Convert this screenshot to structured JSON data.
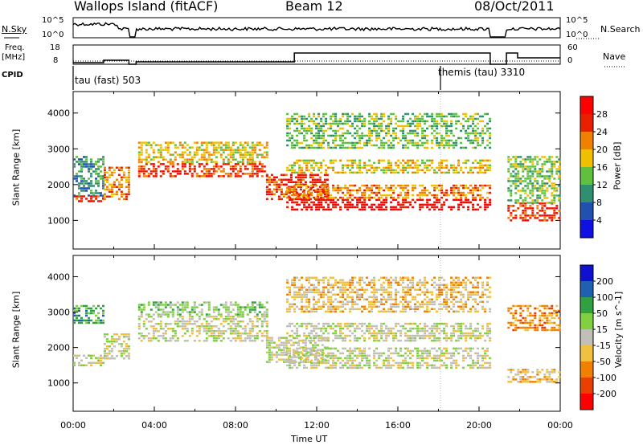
{
  "header": {
    "station": "Wallops Island (fitACF)",
    "beam": "Beam 12",
    "date": "08/Oct/2011"
  },
  "sky_panel": {
    "left_label": "N.Sky",
    "right_label": "N.Search",
    "left_ticks": [
      "10^5",
      "10^0"
    ],
    "right_ticks": [
      "10^5",
      "10^0"
    ]
  },
  "freq_panel": {
    "left_label_line1": "Freq.",
    "left_label_line2": "[MHz]",
    "left_ticks": [
      "18",
      "8"
    ],
    "right_label": "Nave",
    "right_ticks": [
      "60",
      "0"
    ]
  },
  "cpid": {
    "label": "CPID",
    "mode1": "tau (fast) 503",
    "mode2": "themis (tau) 3310"
  },
  "chart_data": [
    {
      "type": "heatmap",
      "name": "power",
      "ylabel": "Slant Range [km]",
      "yticks": [
        "1000",
        "2000",
        "3000",
        "4000"
      ],
      "ylim": [
        200,
        4600
      ],
      "xlim": [
        0,
        24
      ],
      "colorbar_label": "Power [dB]",
      "colorbar_ticks": [
        "4",
        "8",
        "12",
        "16",
        "20",
        "24",
        "28"
      ],
      "colors": [
        "#1010e0",
        "#2050b0",
        "#2f8f6e",
        "#5fc040",
        "#f0c000",
        "#f08000",
        "#e82000",
        "#ff0000"
      ],
      "bands": [
        {
          "t0": 0.0,
          "t1": 1.5,
          "r0": 1500,
          "r1": 1700,
          "level": 6
        },
        {
          "t0": 0.0,
          "t1": 1.5,
          "r0": 1700,
          "r1": 2800,
          "level": 2
        },
        {
          "t0": 1.5,
          "t1": 2.8,
          "r0": 1600,
          "r1": 2500,
          "level": 5
        },
        {
          "t0": 3.2,
          "t1": 9.5,
          "r0": 2200,
          "r1": 2600,
          "level": 6
        },
        {
          "t0": 3.2,
          "t1": 9.5,
          "r0": 2600,
          "r1": 3200,
          "level": 4
        },
        {
          "t0": 9.5,
          "t1": 12.5,
          "r0": 1600,
          "r1": 2300,
          "level": 6
        },
        {
          "t0": 10.5,
          "t1": 20.5,
          "r0": 1300,
          "r1": 1600,
          "level": 7
        },
        {
          "t0": 10.5,
          "t1": 20.5,
          "r0": 1600,
          "r1": 2000,
          "level": 5
        },
        {
          "t0": 10.5,
          "t1": 20.5,
          "r0": 2300,
          "r1": 2700,
          "level": 4
        },
        {
          "t0": 10.5,
          "t1": 20.5,
          "r0": 3000,
          "r1": 4000,
          "level": 3
        },
        {
          "t0": 21.4,
          "t1": 24.0,
          "r0": 1000,
          "r1": 1500,
          "level": 6
        },
        {
          "t0": 21.4,
          "t1": 24.0,
          "r0": 1500,
          "r1": 2800,
          "level": 3
        }
      ]
    },
    {
      "type": "heatmap",
      "name": "velocity",
      "ylabel": "Slant Range [km]",
      "yticks": [
        "1000",
        "2000",
        "3000",
        "4000"
      ],
      "ylim": [
        200,
        4600
      ],
      "xlim": [
        0,
        24
      ],
      "xticks": [
        "00:00",
        "04:00",
        "08:00",
        "12:00",
        "16:00",
        "20:00",
        "00:00"
      ],
      "xlabel": "Time UT",
      "colorbar_label": "Velocity [m s^-1]",
      "colorbar_ticks": [
        "200",
        "100",
        "50",
        "15",
        "-15",
        "-50",
        "-100",
        "-200"
      ],
      "colors": [
        "#1010d0",
        "#2060b0",
        "#30a040",
        "#80d040",
        "#c0c0b8",
        "#f0c040",
        "#f08000",
        "#e84000",
        "#ff0000"
      ],
      "bands": [
        {
          "t0": 0.0,
          "t1": 1.5,
          "r0": 1500,
          "r1": 1800,
          "level": 4
        },
        {
          "t0": 0.0,
          "t1": 1.5,
          "r0": 2700,
          "r1": 3200,
          "level": 2
        },
        {
          "t0": 1.5,
          "t1": 2.8,
          "r0": 1700,
          "r1": 2400,
          "level": 4
        },
        {
          "t0": 2.8,
          "t1": 3.0,
          "r0": 2000,
          "r1": 2700,
          "level": 6
        },
        {
          "t0": 3.2,
          "t1": 9.5,
          "r0": 2200,
          "r1": 2900,
          "level": 4
        },
        {
          "t0": 3.2,
          "t1": 9.5,
          "r0": 2900,
          "r1": 3300,
          "level": 3
        },
        {
          "t0": 9.5,
          "t1": 12.5,
          "r0": 1600,
          "r1": 2300,
          "level": 4
        },
        {
          "t0": 10.5,
          "t1": 20.5,
          "r0": 1400,
          "r1": 2000,
          "level": 4
        },
        {
          "t0": 10.5,
          "t1": 20.5,
          "r0": 2200,
          "r1": 2700,
          "level": 4
        },
        {
          "t0": 10.5,
          "t1": 20.5,
          "r0": 3000,
          "r1": 4000,
          "level": 5
        },
        {
          "t0": 21.4,
          "t1": 24.0,
          "r0": 1000,
          "r1": 1400,
          "level": 5
        },
        {
          "t0": 21.4,
          "t1": 24.0,
          "r0": 2500,
          "r1": 3200,
          "level": 6
        }
      ]
    }
  ]
}
